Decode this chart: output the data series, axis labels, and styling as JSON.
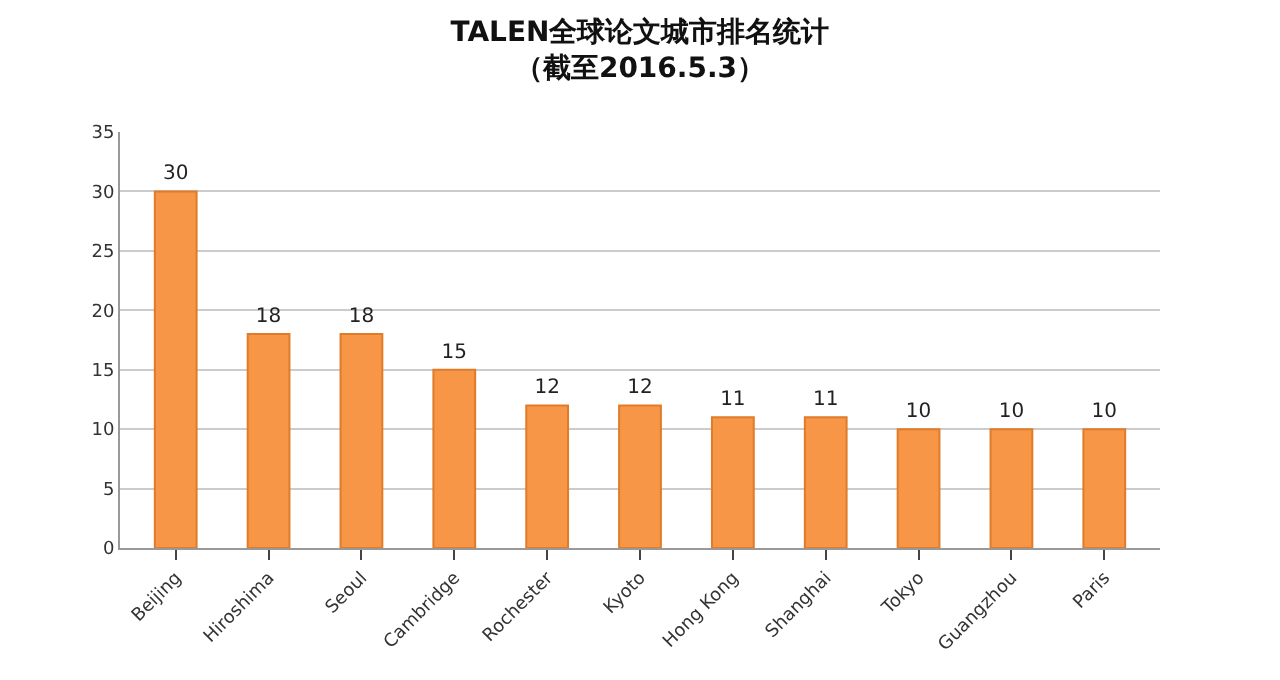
{
  "chart_data": {
    "type": "bar",
    "title": "TALEN全球论文城市排名统计",
    "subtitle": "（截至2016.5.3）",
    "categories": [
      "Beijing",
      "Hiroshima",
      "Seoul",
      "Cambridge",
      "Rochester",
      "Kyoto",
      "Hong Kong",
      "Shanghai",
      "Tokyo",
      "Guangzhou",
      "Paris"
    ],
    "values": [
      30,
      18,
      18,
      15,
      12,
      12,
      11,
      11,
      10,
      10,
      10
    ],
    "color": "#f79646",
    "ylim": [
      0,
      35
    ],
    "yticks": [
      0,
      5,
      10,
      15,
      20,
      25,
      30,
      35
    ],
    "grid": "y",
    "data_labels": true,
    "legend": false
  }
}
